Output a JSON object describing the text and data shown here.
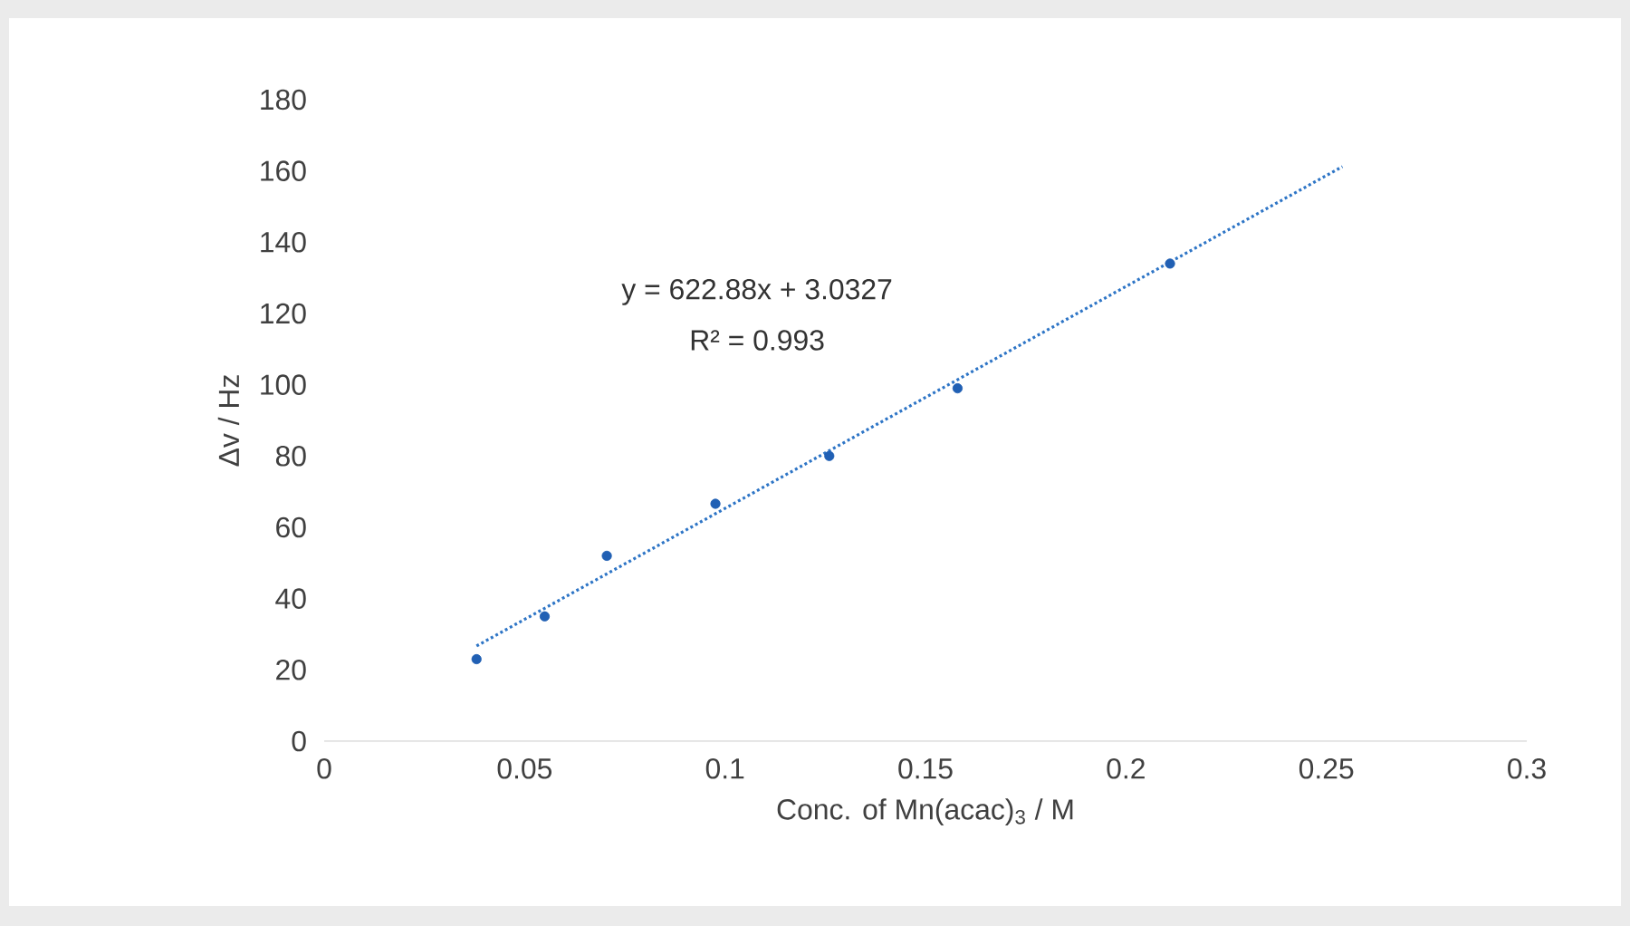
{
  "chart_data": {
    "type": "scatter",
    "xlabel": "Conc. of Mn(acac)$_{3}$ / M",
    "ylabel": "Δv / Hz",
    "series": [
      {
        "color": "#2160b4",
        "marker": "circle",
        "x": [
          0.038,
          0.055,
          0.0705,
          0.0976,
          0.126,
          0.158,
          0.211
        ],
        "values": [
          23,
          35,
          52,
          66.6,
          80,
          99,
          134
        ]
      },
      {
        "type": "line",
        "color": "#2e75c6",
        "marker": "none",
        "line_style": "dotted",
        "x": [
          0.038,
          0.254
        ],
        "values": [
          26.7,
          161.2
        ]
      }
    ],
    "annotations": [
      "y = 622.88x + 3.0327",
      "R² = 0.993"
    ],
    "xlim": [
      0,
      0.3
    ],
    "xticks": [
      0,
      0.05,
      0.1,
      0.15,
      0.2,
      0.25,
      0.3
    ],
    "ylim": [
      0,
      180
    ],
    "yticks": [
      0,
      20,
      40,
      60,
      80,
      100,
      120,
      140,
      160,
      180
    ],
    "grid": false
  }
}
